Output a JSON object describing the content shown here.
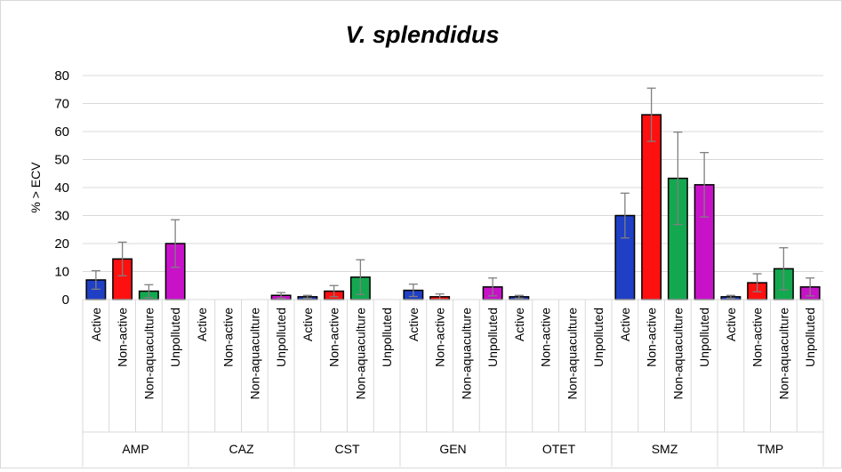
{
  "chart_data": {
    "type": "bar",
    "title": "V. splendidus",
    "ylabel": "% > ECV",
    "xlabel": "",
    "ylim": [
      0,
      80
    ],
    "yticks": [
      0,
      10,
      20,
      30,
      40,
      50,
      60,
      70,
      80
    ],
    "grid": true,
    "legend": "none",
    "subcategories": [
      "Active",
      "Non-active",
      "Non-aquaculture",
      "Unpolluted"
    ],
    "groups": [
      "AMP",
      "CAZ",
      "CST",
      "GEN",
      "OTET",
      "SMZ",
      "TMP"
    ],
    "colors": [
      "#1f3fc4",
      "#ff1010",
      "#13a850",
      "#c812c8"
    ],
    "values": [
      [
        7,
        14.5,
        3,
        20
      ],
      [
        0,
        0,
        0,
        1.5
      ],
      [
        1,
        3,
        8,
        0
      ],
      [
        3.3,
        1,
        0,
        4.5
      ],
      [
        1,
        0,
        0,
        0
      ],
      [
        30,
        66,
        43.3,
        41
      ],
      [
        1,
        6,
        11,
        4.5
      ]
    ],
    "errors": [
      [
        3.3,
        6,
        2.3,
        8.5
      ],
      [
        0,
        0,
        0,
        1
      ],
      [
        0.5,
        2,
        6.2,
        0
      ],
      [
        2.2,
        1,
        0,
        3.2
      ],
      [
        0.5,
        0,
        0,
        0
      ],
      [
        8,
        9.5,
        16.5,
        11.5
      ],
      [
        0.5,
        3.2,
        7.5,
        3.2
      ]
    ]
  }
}
